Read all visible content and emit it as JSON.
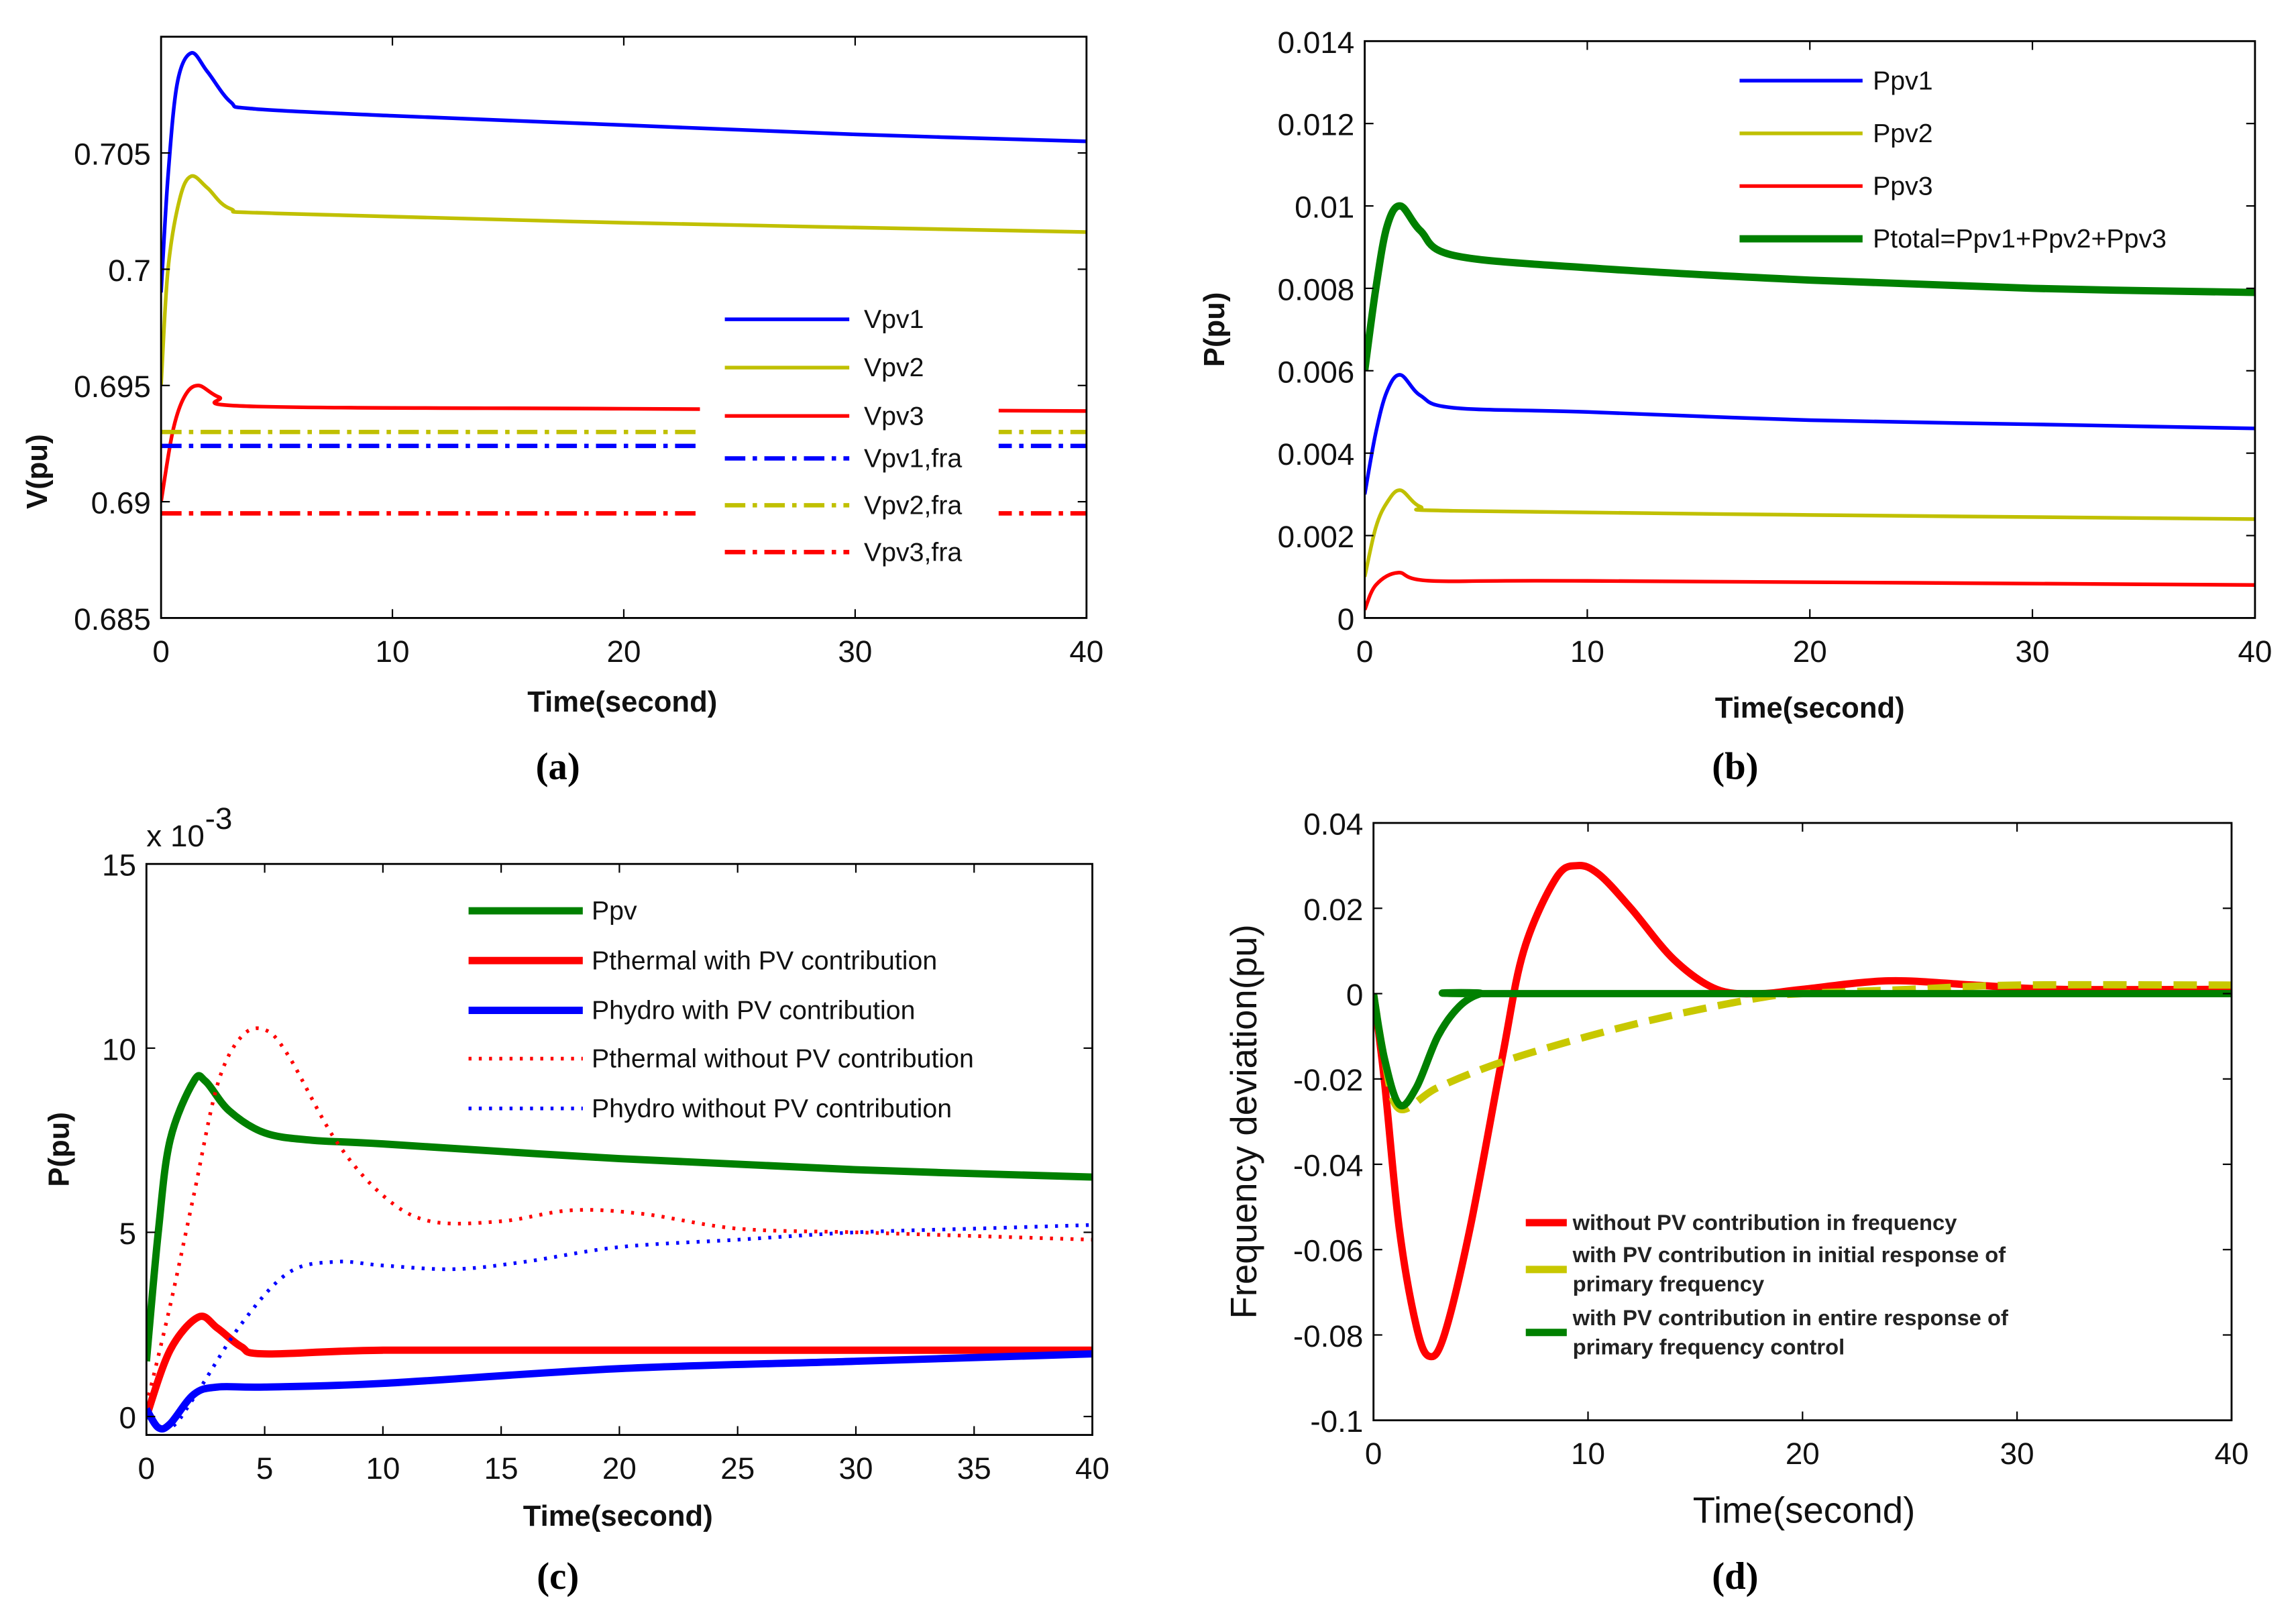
{
  "chart_data": [
    {
      "id": "a",
      "type": "line",
      "caption": "(a)",
      "xlabel": "Time(second)",
      "ylabel": "V(pu)",
      "xlim": [
        0,
        40
      ],
      "ylim": [
        0.685,
        0.71
      ],
      "xticks": [
        0,
        10,
        20,
        30,
        40
      ],
      "xtick_labels": [
        "0",
        "10",
        "20",
        "30",
        "40"
      ],
      "yticks": [
        0.685,
        0.69,
        0.695,
        0.7,
        0.705
      ],
      "ytick_labels": [
        "0.685",
        "0.69",
        "0.695",
        "0.7",
        "0.705"
      ],
      "legend_position": "center-right",
      "series": [
        {
          "name": "Vpv1",
          "color": "#0000ff",
          "style": "solid",
          "points": [
            [
              0,
              0.699
            ],
            [
              0.3,
              0.704
            ],
            [
              0.7,
              0.708
            ],
            [
              1.3,
              0.7093
            ],
            [
              2,
              0.7085
            ],
            [
              3,
              0.7072
            ],
            [
              4,
              0.7069
            ],
            [
              10,
              0.7066
            ],
            [
              20,
              0.7062
            ],
            [
              30,
              0.7058
            ],
            [
              40,
              0.7055
            ]
          ]
        },
        {
          "name": "Vpv2",
          "color": "#c0c000",
          "style": "solid",
          "points": [
            [
              0,
              0.695
            ],
            [
              0.3,
              0.7
            ],
            [
              0.8,
              0.703
            ],
            [
              1.3,
              0.704
            ],
            [
              2,
              0.7035
            ],
            [
              3,
              0.7026
            ],
            [
              5,
              0.7024
            ],
            [
              20,
              0.702
            ],
            [
              40,
              0.7016
            ]
          ]
        },
        {
          "name": "Vpv3",
          "color": "#ff0000",
          "style": "solid",
          "points": [
            [
              0,
              0.69
            ],
            [
              0.5,
              0.693
            ],
            [
              1,
              0.6945
            ],
            [
              1.6,
              0.695
            ],
            [
              2.5,
              0.6945
            ],
            [
              4,
              0.6941
            ],
            [
              20,
              0.694
            ],
            [
              40,
              0.6939
            ]
          ]
        },
        {
          "name": "Vpv1,fra",
          "color": "#0000ff",
          "style": "dashdot",
          "points": [
            [
              0,
              0.6924
            ],
            [
              40,
              0.6924
            ]
          ]
        },
        {
          "name": "Vpv2,fra",
          "color": "#c0c000",
          "style": "dashdot",
          "points": [
            [
              0,
              0.693
            ],
            [
              40,
              0.693
            ]
          ]
        },
        {
          "name": "Vpv3,fra",
          "color": "#ff0000",
          "style": "dashdot",
          "points": [
            [
              0,
              0.6895
            ],
            [
              40,
              0.6895
            ]
          ]
        }
      ]
    },
    {
      "id": "b",
      "type": "line",
      "caption": "(b)",
      "xlabel": "Time(second)",
      "ylabel": "P(pu)",
      "xlim": [
        0,
        40
      ],
      "ylim": [
        0,
        0.014
      ],
      "xticks": [
        0,
        10,
        20,
        30,
        40
      ],
      "xtick_labels": [
        "0",
        "10",
        "20",
        "30",
        "40"
      ],
      "yticks": [
        0,
        0.002,
        0.004,
        0.006,
        0.008,
        0.01,
        0.012,
        0.014
      ],
      "ytick_labels": [
        "0",
        "0.002",
        "0.004",
        "0.006",
        "0.008",
        "0.01",
        "0.012",
        "0.014"
      ],
      "legend_position": "top-right",
      "series": [
        {
          "name": "Ppv1",
          "color": "#0000ff",
          "style": "solid",
          "points": [
            [
              0,
              0.003
            ],
            [
              0.5,
              0.0045
            ],
            [
              1,
              0.0055
            ],
            [
              1.6,
              0.0059
            ],
            [
              2.5,
              0.0054
            ],
            [
              4,
              0.0051
            ],
            [
              10,
              0.005
            ],
            [
              20,
              0.0048
            ],
            [
              30,
              0.0047
            ],
            [
              40,
              0.0046
            ]
          ]
        },
        {
          "name": "Ppv2",
          "color": "#c0c000",
          "style": "solid",
          "points": [
            [
              0,
              0.001
            ],
            [
              0.5,
              0.0022
            ],
            [
              1,
              0.0028
            ],
            [
              1.6,
              0.0031
            ],
            [
              2.5,
              0.0027
            ],
            [
              4,
              0.0026
            ],
            [
              20,
              0.0025
            ],
            [
              40,
              0.0024
            ]
          ]
        },
        {
          "name": "Ppv3",
          "color": "#ff0000",
          "style": "solid",
          "points": [
            [
              0,
              0.0002
            ],
            [
              0.5,
              0.0008
            ],
            [
              1.5,
              0.0011
            ],
            [
              3,
              0.0009
            ],
            [
              10,
              0.0009
            ],
            [
              40,
              0.0008
            ]
          ]
        },
        {
          "name": "Ptotal=Ppv1+Ppv2+Ppv3",
          "color": "#008000",
          "style": "thick",
          "points": [
            [
              0,
              0.006
            ],
            [
              0.5,
              0.008
            ],
            [
              1,
              0.0095
            ],
            [
              1.6,
              0.01
            ],
            [
              2.5,
              0.0094
            ],
            [
              4,
              0.0088
            ],
            [
              10,
              0.0085
            ],
            [
              20,
              0.0082
            ],
            [
              30,
              0.008
            ],
            [
              40,
              0.0079
            ]
          ]
        }
      ]
    },
    {
      "id": "c",
      "type": "line",
      "caption": "(c)",
      "xlabel": "Time(second)",
      "ylabel": "P(pu)",
      "y_multiplier": "x 10",
      "y_multiplier_exp": "-3",
      "xlim": [
        0,
        40
      ],
      "ylim": [
        -0.5,
        15
      ],
      "xticks": [
        0,
        5,
        10,
        15,
        20,
        25,
        30,
        35,
        40
      ],
      "xtick_labels": [
        "0",
        "5",
        "10",
        "15",
        "20",
        "25",
        "30",
        "35",
        "40"
      ],
      "yticks": [
        0,
        5,
        10,
        15
      ],
      "ytick_labels": [
        "0",
        "5",
        "10",
        "15"
      ],
      "legend_position": "top-right",
      "series": [
        {
          "name": "Ppv",
          "color": "#008000",
          "style": "thick",
          "points": [
            [
              0,
              1.5
            ],
            [
              0.5,
              5
            ],
            [
              1,
              7.5
            ],
            [
              2,
              9.1
            ],
            [
              2.5,
              9.1
            ],
            [
              3.5,
              8.3
            ],
            [
              5,
              7.7
            ],
            [
              7,
              7.5
            ],
            [
              10,
              7.4
            ],
            [
              20,
              7.0
            ],
            [
              30,
              6.7
            ],
            [
              40,
              6.5
            ]
          ]
        },
        {
          "name": "Pthermal with PV contribution",
          "color": "#ff0000",
          "style": "thick",
          "points": [
            [
              0,
              0
            ],
            [
              1,
              1.8
            ],
            [
              2.2,
              2.7
            ],
            [
              3,
              2.4
            ],
            [
              4,
              1.9
            ],
            [
              5,
              1.7
            ],
            [
              10,
              1.8
            ],
            [
              20,
              1.8
            ],
            [
              40,
              1.8
            ]
          ]
        },
        {
          "name": "Phydro with PV contribution",
          "color": "#0000ff",
          "style": "thick",
          "points": [
            [
              0,
              0.2
            ],
            [
              0.5,
              -0.3
            ],
            [
              1,
              -0.2
            ],
            [
              2,
              0.6
            ],
            [
              3,
              0.8
            ],
            [
              5,
              0.8
            ],
            [
              10,
              0.9
            ],
            [
              20,
              1.3
            ],
            [
              30,
              1.5
            ],
            [
              40,
              1.7
            ]
          ]
        },
        {
          "name": "Pthermal without PV contribution",
          "color": "#ff0000",
          "style": "dotted",
          "points": [
            [
              0,
              0.3
            ],
            [
              1,
              3
            ],
            [
              2,
              6
            ],
            [
              3,
              9
            ],
            [
              4,
              10.3
            ],
            [
              5,
              10.5
            ],
            [
              6,
              9.8
            ],
            [
              8,
              7.5
            ],
            [
              10,
              6
            ],
            [
              12,
              5.3
            ],
            [
              15,
              5.3
            ],
            [
              18,
              5.6
            ],
            [
              21,
              5.5
            ],
            [
              25,
              5.1
            ],
            [
              30,
              5.0
            ],
            [
              35,
              4.9
            ],
            [
              40,
              4.8
            ]
          ]
        },
        {
          "name": "Phydro without PV contribution",
          "color": "#0000ff",
          "style": "dotted",
          "points": [
            [
              0,
              0
            ],
            [
              1,
              -0.3
            ],
            [
              2,
              0.5
            ],
            [
              4,
              2.5
            ],
            [
              6,
              3.9
            ],
            [
              8,
              4.2
            ],
            [
              10,
              4.1
            ],
            [
              13,
              4.0
            ],
            [
              16,
              4.2
            ],
            [
              20,
              4.6
            ],
            [
              25,
              4.8
            ],
            [
              30,
              5.0
            ],
            [
              35,
              5.1
            ],
            [
              40,
              5.2
            ]
          ]
        }
      ]
    },
    {
      "id": "d",
      "type": "line",
      "caption": "(d)",
      "xlabel": "Time(second)",
      "ylabel": "Frequency deviation(pu)",
      "xlim": [
        0,
        40
      ],
      "ylim": [
        -0.1,
        0.04
      ],
      "xticks": [
        0,
        10,
        20,
        30,
        40
      ],
      "xtick_labels": [
        "0",
        "10",
        "20",
        "30",
        "40"
      ],
      "yticks": [
        -0.1,
        -0.08,
        -0.06,
        -0.04,
        -0.02,
        0,
        0.02,
        0.04
      ],
      "ytick_labels": [
        "-0.1",
        "-0.08",
        "-0.06",
        "-0.04",
        "-0.02",
        "0",
        "0.02",
        "0.04"
      ],
      "legend_position": "bottom-right",
      "series": [
        {
          "name": "without PV contribution in frequency",
          "legend_lines": [
            "without PV contribution in frequency"
          ],
          "color": "#ff0000",
          "style": "thick",
          "points": [
            [
              0,
              0
            ],
            [
              0.5,
              -0.02
            ],
            [
              1.2,
              -0.055
            ],
            [
              2,
              -0.078
            ],
            [
              2.6,
              -0.085
            ],
            [
              3.3,
              -0.08
            ],
            [
              4.5,
              -0.055
            ],
            [
              6,
              -0.015
            ],
            [
              7,
              0.01
            ],
            [
              8.5,
              0.027
            ],
            [
              9.5,
              0.03
            ],
            [
              10.5,
              0.028
            ],
            [
              12,
              0.02
            ],
            [
              14,
              0.008
            ],
            [
              16,
              0.001
            ],
            [
              18,
              0
            ],
            [
              20,
              0.001
            ],
            [
              24,
              0.003
            ],
            [
              28,
              0.002
            ],
            [
              32,
              0.001
            ],
            [
              40,
              0.001
            ]
          ]
        },
        {
          "name": "with PV contribution in initial response of primary frequency",
          "legend_lines": [
            "with PV contribution in initial response of",
            "primary frequency"
          ],
          "color": "#c8c800",
          "style": "dashed",
          "points": [
            [
              0,
              0
            ],
            [
              0.5,
              -0.015
            ],
            [
              1.2,
              -0.027
            ],
            [
              3,
              -0.022
            ],
            [
              6,
              -0.016
            ],
            [
              10,
              -0.01
            ],
            [
              14,
              -0.005
            ],
            [
              18,
              -0.001
            ],
            [
              20,
              0
            ],
            [
              25,
              0.001
            ],
            [
              30,
              0.002
            ],
            [
              40,
              0.002
            ]
          ]
        },
        {
          "name": "with PV contribution in entire response of primary frequency control",
          "legend_lines": [
            "with PV contribution in entire response of",
            "primary frequency control"
          ],
          "color": "#008000",
          "style": "thick",
          "points": [
            [
              0,
              0
            ],
            [
              0.5,
              -0.015
            ],
            [
              1.2,
              -0.026
            ],
            [
              2,
              -0.022
            ],
            [
              3,
              -0.01
            ],
            [
              4,
              -0.003
            ],
            [
              5,
              0
            ],
            [
              6,
              0
            ],
            [
              40,
              0
            ]
          ]
        }
      ]
    }
  ]
}
